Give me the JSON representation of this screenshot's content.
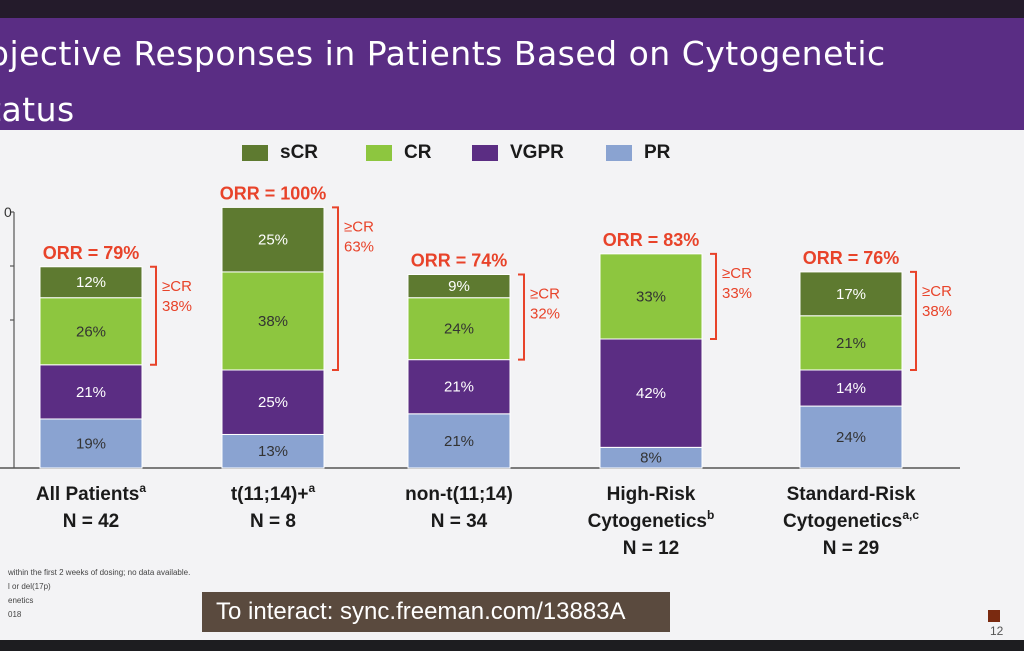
{
  "slide": {
    "title_line1": "bjective Responses in Patients Based on Cytogenetic",
    "title_line2": "tatus",
    "interact_text": "To interact: sync.freeman.com/13883A",
    "page_number": "12",
    "footnotes": [
      "within the first 2 weeks of dosing; no data available.",
      "l or del(17p)",
      "enetics",
      "018"
    ]
  },
  "colors": {
    "sCR": "#5e7a30",
    "CR": "#8dc63f",
    "VGPR": "#5b2d83",
    "PR": "#8aa3d1",
    "accent_red": "#e8432a",
    "title_band": "#5a2d84"
  },
  "chart_data": {
    "type": "bar",
    "stacked": true,
    "legend_position": "top",
    "categories": [
      {
        "line1": "All Patients",
        "sup": "a",
        "line2": "N = 42",
        "line3": ""
      },
      {
        "line1": "t(11;14)+",
        "sup": "a",
        "line2": "N = 8",
        "line3": ""
      },
      {
        "line1": "non-t(11;14)",
        "sup": "",
        "line2": "N = 34",
        "line3": ""
      },
      {
        "line1": "High-Risk",
        "sup": "",
        "line2": "Cytogenetics",
        "line2sup": "b",
        "line3": "N = 12"
      },
      {
        "line1": "Standard-Risk",
        "sup": "",
        "line2": "Cytogenetics",
        "line2sup": "a,c",
        "line3": "N = 29"
      }
    ],
    "series": [
      {
        "name": "PR",
        "values": [
          19,
          13,
          21,
          8,
          24
        ],
        "labels": [
          "19%",
          "13%",
          "21%",
          "8%",
          "24%"
        ]
      },
      {
        "name": "VGPR",
        "values": [
          21,
          25,
          21,
          42,
          14
        ],
        "labels": [
          "21%",
          "25%",
          "21%",
          "42%",
          "14%"
        ]
      },
      {
        "name": "CR",
        "values": [
          26,
          38,
          24,
          33,
          21
        ],
        "labels": [
          "26%",
          "38%",
          "24%",
          "33%",
          "21%"
        ]
      },
      {
        "name": "sCR",
        "values": [
          12,
          25,
          9,
          0,
          17
        ],
        "labels": [
          "12%",
          "25%",
          "9%",
          "",
          "17%"
        ]
      }
    ],
    "legend_order": [
      "sCR",
      "CR",
      "VGPR",
      "PR"
    ],
    "orr_labels": [
      "ORR = 79%",
      "ORR = 100%",
      "ORR = 74%",
      "ORR = 83%",
      "ORR = 76%"
    ],
    "cr_or_better": [
      {
        "label": "≥CR",
        "value": "38%"
      },
      {
        "label": "≥CR",
        "value": "63%"
      },
      {
        "label": "≥CR",
        "value": "32%"
      },
      {
        "label": "≥CR",
        "value": "33%"
      },
      {
        "label": "≥CR",
        "value": "38%"
      }
    ],
    "ylim": [
      0,
      100
    ],
    "y_ticks_visible": [
      "0",
      "",
      ""
    ]
  }
}
